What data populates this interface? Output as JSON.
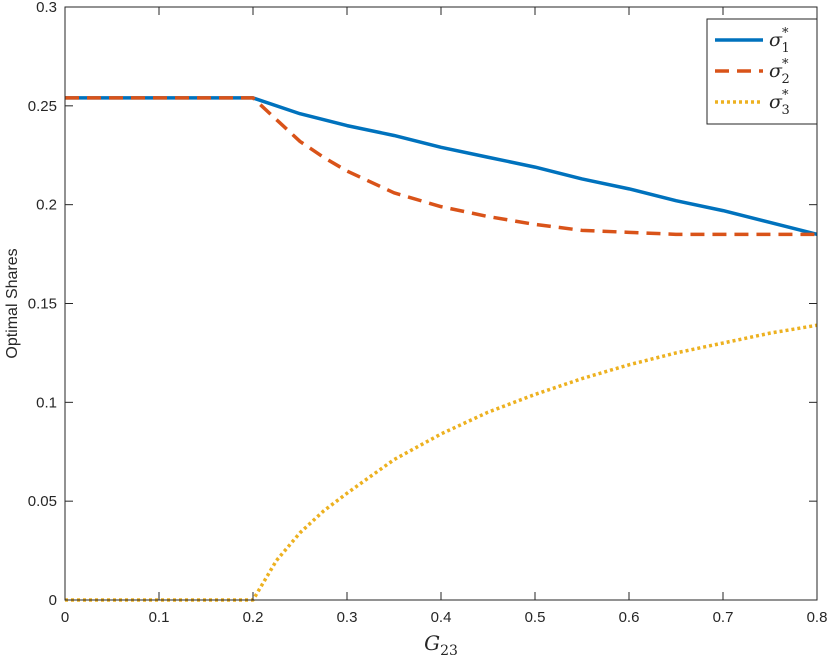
{
  "chart_data": {
    "type": "line",
    "title": "",
    "xlabel": "G",
    "xlabel_subscript": "23",
    "ylabel": "Optimal Shares",
    "xlim": [
      0,
      0.8
    ],
    "ylim": [
      0,
      0.3
    ],
    "xticks": [
      "0",
      "0.1",
      "0.2",
      "0.3",
      "0.4",
      "0.5",
      "0.6",
      "0.7",
      "0.8"
    ],
    "yticks": [
      "0",
      "0.05",
      "0.1",
      "0.15",
      "0.2",
      "0.25",
      "0.3"
    ],
    "grid": false,
    "legend_position": "top-right",
    "series": [
      {
        "name": "σ",
        "subscript": "1",
        "superscript": "*",
        "color": "#0072BD",
        "style": "solid",
        "x": [
          0,
          0.05,
          0.1,
          0.15,
          0.2,
          0.25,
          0.3,
          0.35,
          0.4,
          0.45,
          0.5,
          0.55,
          0.6,
          0.65,
          0.7,
          0.75,
          0.8
        ],
        "y": [
          0.254,
          0.254,
          0.254,
          0.254,
          0.254,
          0.246,
          0.24,
          0.235,
          0.229,
          0.224,
          0.219,
          0.213,
          0.208,
          0.202,
          0.197,
          0.191,
          0.185
        ]
      },
      {
        "name": "σ",
        "subscript": "2",
        "superscript": "*",
        "color": "#D95319",
        "style": "dashed",
        "x": [
          0,
          0.05,
          0.1,
          0.15,
          0.2,
          0.225,
          0.25,
          0.275,
          0.3,
          0.35,
          0.4,
          0.45,
          0.5,
          0.55,
          0.6,
          0.65,
          0.7,
          0.75,
          0.8
        ],
        "y": [
          0.254,
          0.254,
          0.254,
          0.254,
          0.254,
          0.243,
          0.232,
          0.224,
          0.217,
          0.206,
          0.199,
          0.194,
          0.19,
          0.187,
          0.186,
          0.185,
          0.185,
          0.185,
          0.185
        ]
      },
      {
        "name": "σ",
        "subscript": "3",
        "superscript": "*",
        "color": "#EDB120",
        "style": "dotted",
        "x": [
          0,
          0.05,
          0.1,
          0.15,
          0.2,
          0.225,
          0.25,
          0.275,
          0.3,
          0.35,
          0.4,
          0.45,
          0.5,
          0.55,
          0.6,
          0.65,
          0.7,
          0.75,
          0.8
        ],
        "y": [
          0,
          0,
          0,
          0,
          0,
          0.02,
          0.034,
          0.045,
          0.054,
          0.071,
          0.084,
          0.095,
          0.104,
          0.112,
          0.119,
          0.125,
          0.13,
          0.135,
          0.139
        ]
      }
    ]
  }
}
